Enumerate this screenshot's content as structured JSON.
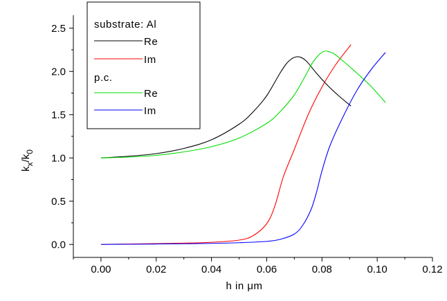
{
  "chart_data": {
    "type": "line",
    "xlabel_pre": "h in ",
    "xlabel_unit": "μm",
    "ylabel": {
      "k": "k",
      "sub1": "x",
      "slash": "/k",
      "sub2": "0"
    },
    "xlim": [
      -0.01,
      0.12
    ],
    "ylim": [
      -0.15,
      2.65
    ],
    "x_ticks": [
      0.0,
      0.02,
      0.04,
      0.06,
      0.08,
      0.1,
      0.12
    ],
    "x_tick_labels": [
      "0.00",
      "0.02",
      "0.04",
      "0.06",
      "0.08",
      "0.10",
      "0.12"
    ],
    "y_ticks": [
      0.0,
      0.5,
      1.0,
      1.5,
      2.0,
      2.5
    ],
    "y_tick_labels": [
      "0.0",
      "0.5",
      "1.0",
      "1.5",
      "2.0",
      "2.5"
    ],
    "grid": false,
    "legend": {
      "placement": "top-left",
      "group1_title": "substrate: Al",
      "group2_title": "p.c.",
      "entries": [
        {
          "label": "Re",
          "color": "#000000"
        },
        {
          "label": "Im",
          "color": "#ff0000"
        },
        {
          "label": "Re",
          "color": "#00dd00"
        },
        {
          "label": "Im",
          "color": "#0000ff"
        }
      ]
    },
    "series": [
      {
        "group": "substrate: Al",
        "component": "Re",
        "color": "#000000",
        "points": [
          [
            0.0,
            1.0
          ],
          [
            0.01,
            1.02
          ],
          [
            0.02,
            1.05
          ],
          [
            0.03,
            1.11
          ],
          [
            0.04,
            1.21
          ],
          [
            0.05,
            1.39
          ],
          [
            0.055,
            1.53
          ],
          [
            0.06,
            1.72
          ],
          [
            0.065,
            1.99
          ],
          [
            0.068,
            2.12
          ],
          [
            0.071,
            2.17
          ],
          [
            0.074,
            2.13
          ],
          [
            0.078,
            1.98
          ],
          [
            0.082,
            1.84
          ],
          [
            0.086,
            1.72
          ],
          [
            0.0905,
            1.6
          ]
        ]
      },
      {
        "group": "substrate: Al",
        "component": "Im",
        "color": "#ff0000",
        "points": [
          [
            0.0,
            0.0
          ],
          [
            0.01,
            0.005
          ],
          [
            0.02,
            0.01
          ],
          [
            0.03,
            0.015
          ],
          [
            0.04,
            0.025
          ],
          [
            0.05,
            0.05
          ],
          [
            0.055,
            0.1
          ],
          [
            0.06,
            0.24
          ],
          [
            0.063,
            0.45
          ],
          [
            0.066,
            0.78
          ],
          [
            0.07,
            1.1
          ],
          [
            0.075,
            1.5
          ],
          [
            0.08,
            1.82
          ],
          [
            0.085,
            2.08
          ],
          [
            0.0905,
            2.31
          ]
        ]
      },
      {
        "group": "p.c.",
        "component": "Re",
        "color": "#00dd00",
        "points": [
          [
            0.0,
            1.0
          ],
          [
            0.01,
            1.01
          ],
          [
            0.02,
            1.03
          ],
          [
            0.03,
            1.07
          ],
          [
            0.04,
            1.13
          ],
          [
            0.05,
            1.23
          ],
          [
            0.06,
            1.4
          ],
          [
            0.065,
            1.54
          ],
          [
            0.07,
            1.73
          ],
          [
            0.074,
            1.95
          ],
          [
            0.077,
            2.12
          ],
          [
            0.0805,
            2.23
          ],
          [
            0.084,
            2.21
          ],
          [
            0.088,
            2.11
          ],
          [
            0.093,
            1.97
          ],
          [
            0.098,
            1.82
          ],
          [
            0.103,
            1.64
          ]
        ]
      },
      {
        "group": "p.c.",
        "component": "Im",
        "color": "#0000ff",
        "points": [
          [
            0.0,
            0.0
          ],
          [
            0.01,
            0.002
          ],
          [
            0.02,
            0.005
          ],
          [
            0.03,
            0.008
          ],
          [
            0.04,
            0.012
          ],
          [
            0.05,
            0.02
          ],
          [
            0.06,
            0.035
          ],
          [
            0.065,
            0.06
          ],
          [
            0.07,
            0.12
          ],
          [
            0.073,
            0.22
          ],
          [
            0.076,
            0.4
          ],
          [
            0.078,
            0.6
          ],
          [
            0.08,
            0.85
          ],
          [
            0.083,
            1.15
          ],
          [
            0.088,
            1.5
          ],
          [
            0.093,
            1.8
          ],
          [
            0.098,
            2.03
          ],
          [
            0.103,
            2.22
          ]
        ]
      }
    ]
  }
}
